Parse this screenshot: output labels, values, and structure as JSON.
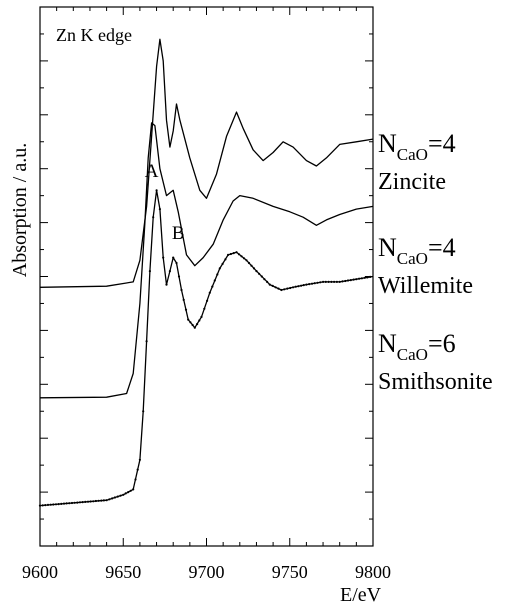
{
  "chart_data": {
    "type": "line",
    "title": "Zn K edge",
    "xlabel": "E/eV",
    "ylabel": "Absorption / a.u.",
    "xlim": [
      9600,
      9800
    ],
    "ylim": [
      0,
      10
    ],
    "grid": false,
    "x_ticks": [
      9600,
      9650,
      9700,
      9750,
      9800
    ],
    "x_tick_labels": [
      "9600",
      "9650",
      "9700",
      "9750",
      "9800"
    ],
    "y_tick_labels_shown": false,
    "series": [
      {
        "label_main": "N",
        "label_sub": "CaO",
        "label_value": "=4",
        "label_name": "Zincite",
        "markers": false,
        "points": [
          [
            9600,
            4.8
          ],
          [
            9640,
            4.82
          ],
          [
            9656,
            4.9
          ],
          [
            9660,
            5.3
          ],
          [
            9664,
            6.3
          ],
          [
            9667,
            7.6
          ],
          [
            9670,
            8.9
          ],
          [
            9672,
            9.4
          ],
          [
            9674,
            9.0
          ],
          [
            9676,
            7.9
          ],
          [
            9678,
            7.4
          ],
          [
            9680,
            7.7
          ],
          [
            9682,
            8.2
          ],
          [
            9684,
            7.9
          ],
          [
            9690,
            7.2
          ],
          [
            9696,
            6.6
          ],
          [
            9700,
            6.45
          ],
          [
            9706,
            6.9
          ],
          [
            9712,
            7.6
          ],
          [
            9718,
            8.05
          ],
          [
            9722,
            7.75
          ],
          [
            9728,
            7.35
          ],
          [
            9734,
            7.15
          ],
          [
            9740,
            7.3
          ],
          [
            9746,
            7.5
          ],
          [
            9752,
            7.4
          ],
          [
            9760,
            7.15
          ],
          [
            9766,
            7.05
          ],
          [
            9772,
            7.2
          ],
          [
            9780,
            7.45
          ],
          [
            9790,
            7.5
          ],
          [
            9800,
            7.55
          ]
        ]
      },
      {
        "label_main": "N",
        "label_sub": "CaO",
        "label_value": "=4",
        "label_name": "Willemite",
        "markers": false,
        "points": [
          [
            9600,
            2.75
          ],
          [
            9640,
            2.76
          ],
          [
            9652,
            2.83
          ],
          [
            9656,
            3.2
          ],
          [
            9660,
            4.5
          ],
          [
            9663,
            6.0
          ],
          [
            9665,
            7.2
          ],
          [
            9667,
            7.85
          ],
          [
            9669,
            7.8
          ],
          [
            9672,
            7.0
          ],
          [
            9676,
            6.5
          ],
          [
            9680,
            6.6
          ],
          [
            9683,
            6.2
          ],
          [
            9688,
            5.4
          ],
          [
            9693,
            5.2
          ],
          [
            9698,
            5.35
          ],
          [
            9704,
            5.6
          ],
          [
            9710,
            6.05
          ],
          [
            9716,
            6.4
          ],
          [
            9720,
            6.5
          ],
          [
            9728,
            6.45
          ],
          [
            9740,
            6.3
          ],
          [
            9750,
            6.2
          ],
          [
            9758,
            6.1
          ],
          [
            9766,
            5.95
          ],
          [
            9772,
            6.05
          ],
          [
            9780,
            6.15
          ],
          [
            9790,
            6.25
          ],
          [
            9800,
            6.3
          ]
        ]
      },
      {
        "label_main": "N",
        "label_sub": "CaO",
        "label_value": "=6",
        "label_name": "Smithsonite",
        "markers": true,
        "points": [
          [
            9600,
            0.75
          ],
          [
            9640,
            0.85
          ],
          [
            9650,
            0.95
          ],
          [
            9656,
            1.05
          ],
          [
            9660,
            1.6
          ],
          [
            9662,
            2.5
          ],
          [
            9664,
            3.8
          ],
          [
            9666,
            5.1
          ],
          [
            9668,
            6.1
          ],
          [
            9670,
            6.6
          ],
          [
            9672,
            6.25
          ],
          [
            9674,
            5.35
          ],
          [
            9676,
            4.85
          ],
          [
            9678,
            5.1
          ],
          [
            9680,
            5.35
          ],
          [
            9682,
            5.25
          ],
          [
            9685,
            4.75
          ],
          [
            9689,
            4.2
          ],
          [
            9693,
            4.05
          ],
          [
            9697,
            4.25
          ],
          [
            9702,
            4.7
          ],
          [
            9708,
            5.15
          ],
          [
            9713,
            5.4
          ],
          [
            9718,
            5.45
          ],
          [
            9724,
            5.3
          ],
          [
            9730,
            5.1
          ],
          [
            9738,
            4.85
          ],
          [
            9745,
            4.75
          ],
          [
            9752,
            4.8
          ],
          [
            9760,
            4.85
          ],
          [
            9770,
            4.9
          ],
          [
            9780,
            4.9
          ],
          [
            9790,
            4.95
          ],
          [
            9800,
            5.0
          ]
        ]
      }
    ],
    "annotations": [
      {
        "text": "A",
        "x": 9667,
        "y": 6.85
      },
      {
        "text": "B",
        "x": 9683,
        "y": 5.7
      }
    ]
  }
}
